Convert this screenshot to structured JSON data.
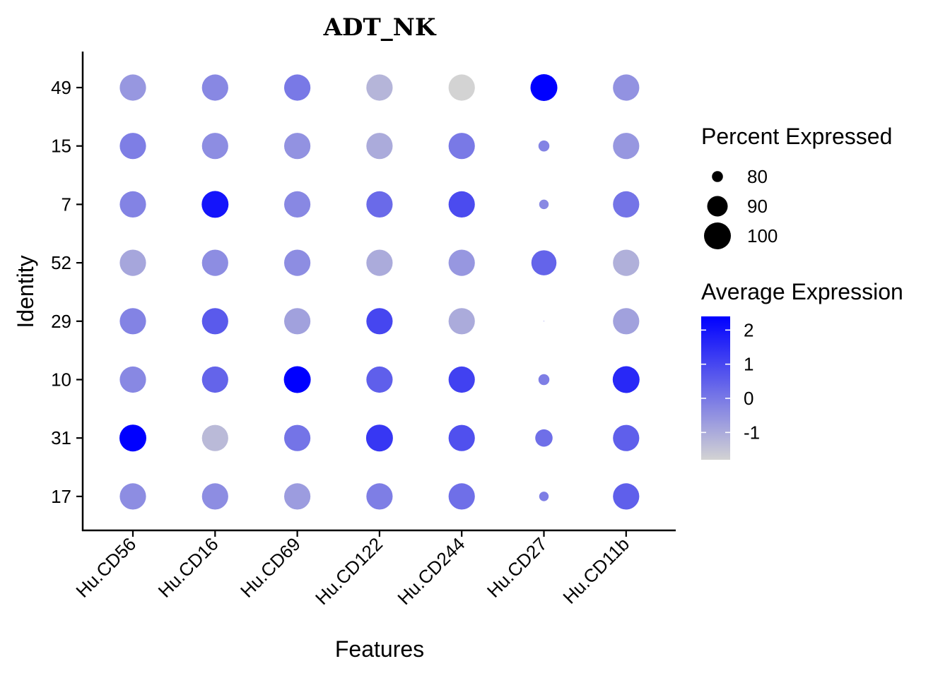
{
  "chart_data": {
    "type": "dotplot",
    "title": "ADT_NK",
    "xlabel": "Features",
    "ylabel": "Identity",
    "features": [
      "Hu.CD56",
      "Hu.CD16",
      "Hu.CD69",
      "Hu.CD122",
      "Hu.CD244",
      "Hu.CD27",
      "Hu.CD11b"
    ],
    "identities": [
      "49",
      "15",
      "7",
      "52",
      "29",
      "10",
      "31",
      "17"
    ],
    "color_low": "#d3d3d3",
    "color_high": "#0000ff",
    "color_range": [
      -1.8,
      2.4
    ],
    "size_range": [
      76,
      100
    ],
    "size_legend": {
      "title": "Percent Expressed",
      "breaks": [
        80,
        90,
        100
      ]
    },
    "color_legend": {
      "title": "Average Expression",
      "breaks": [
        2,
        1,
        0,
        -1
      ],
      "labels": [
        "2",
        "1",
        "0",
        "-1"
      ]
    },
    "legend_position": "right",
    "grid": false,
    "points": [
      {
        "identity": "49",
        "feature": "Hu.CD56",
        "pct": 99,
        "avg": -0.6
      },
      {
        "identity": "49",
        "feature": "Hu.CD16",
        "pct": 99,
        "avg": -0.3
      },
      {
        "identity": "49",
        "feature": "Hu.CD69",
        "pct": 99,
        "avg": 0.0
      },
      {
        "identity": "49",
        "feature": "Hu.CD122",
        "pct": 99,
        "avg": -1.2
      },
      {
        "identity": "49",
        "feature": "Hu.CD244",
        "pct": 99,
        "avg": -1.8
      },
      {
        "identity": "49",
        "feature": "Hu.CD27",
        "pct": 100,
        "avg": 2.4
      },
      {
        "identity": "49",
        "feature": "Hu.CD11b",
        "pct": 99,
        "avg": -0.5
      },
      {
        "identity": "15",
        "feature": "Hu.CD56",
        "pct": 99,
        "avg": -0.1
      },
      {
        "identity": "15",
        "feature": "Hu.CD16",
        "pct": 99,
        "avg": -0.4
      },
      {
        "identity": "15",
        "feature": "Hu.CD69",
        "pct": 99,
        "avg": -0.5
      },
      {
        "identity": "15",
        "feature": "Hu.CD122",
        "pct": 99,
        "avg": -1.0
      },
      {
        "identity": "15",
        "feature": "Hu.CD244",
        "pct": 99,
        "avg": 0.0
      },
      {
        "identity": "15",
        "feature": "Hu.CD27",
        "pct": 80,
        "avg": -0.2
      },
      {
        "identity": "15",
        "feature": "Hu.CD11b",
        "pct": 99,
        "avg": -0.6
      },
      {
        "identity": "7",
        "feature": "Hu.CD56",
        "pct": 99,
        "avg": -0.2
      },
      {
        "identity": "7",
        "feature": "Hu.CD16",
        "pct": 100,
        "avg": 2.0
      },
      {
        "identity": "7",
        "feature": "Hu.CD69",
        "pct": 99,
        "avg": -0.3
      },
      {
        "identity": "7",
        "feature": "Hu.CD122",
        "pct": 99,
        "avg": 0.3
      },
      {
        "identity": "7",
        "feature": "Hu.CD244",
        "pct": 99,
        "avg": 0.9
      },
      {
        "identity": "7",
        "feature": "Hu.CD27",
        "pct": 79,
        "avg": -0.3
      },
      {
        "identity": "7",
        "feature": "Hu.CD11b",
        "pct": 99,
        "avg": 0.1
      },
      {
        "identity": "52",
        "feature": "Hu.CD56",
        "pct": 99,
        "avg": -0.9
      },
      {
        "identity": "52",
        "feature": "Hu.CD16",
        "pct": 99,
        "avg": -0.4
      },
      {
        "identity": "52",
        "feature": "Hu.CD69",
        "pct": 99,
        "avg": -0.4
      },
      {
        "identity": "52",
        "feature": "Hu.CD122",
        "pct": 99,
        "avg": -1.0
      },
      {
        "identity": "52",
        "feature": "Hu.CD244",
        "pct": 99,
        "avg": -0.6
      },
      {
        "identity": "52",
        "feature": "Hu.CD27",
        "pct": 97,
        "avg": 0.4
      },
      {
        "identity": "52",
        "feature": "Hu.CD11b",
        "pct": 99,
        "avg": -1.1
      },
      {
        "identity": "29",
        "feature": "Hu.CD56",
        "pct": 99,
        "avg": -0.2
      },
      {
        "identity": "29",
        "feature": "Hu.CD16",
        "pct": 99,
        "avg": 0.6
      },
      {
        "identity": "29",
        "feature": "Hu.CD69",
        "pct": 99,
        "avg": -0.8
      },
      {
        "identity": "29",
        "feature": "Hu.CD122",
        "pct": 99,
        "avg": 1.0
      },
      {
        "identity": "29",
        "feature": "Hu.CD244",
        "pct": 99,
        "avg": -1.0
      },
      {
        "identity": "29",
        "feature": "Hu.CD27",
        "pct": 76,
        "avg": -0.2
      },
      {
        "identity": "29",
        "feature": "Hu.CD11b",
        "pct": 99,
        "avg": -0.8
      },
      {
        "identity": "10",
        "feature": "Hu.CD56",
        "pct": 99,
        "avg": -0.3
      },
      {
        "identity": "10",
        "feature": "Hu.CD16",
        "pct": 99,
        "avg": 0.4
      },
      {
        "identity": "10",
        "feature": "Hu.CD69",
        "pct": 100,
        "avg": 2.4
      },
      {
        "identity": "10",
        "feature": "Hu.CD122",
        "pct": 99,
        "avg": 0.5
      },
      {
        "identity": "10",
        "feature": "Hu.CD244",
        "pct": 99,
        "avg": 1.1
      },
      {
        "identity": "10",
        "feature": "Hu.CD27",
        "pct": 80,
        "avg": -0.1
      },
      {
        "identity": "10",
        "feature": "Hu.CD11b",
        "pct": 100,
        "avg": 1.6
      },
      {
        "identity": "31",
        "feature": "Hu.CD56",
        "pct": 100,
        "avg": 2.4
      },
      {
        "identity": "31",
        "feature": "Hu.CD16",
        "pct": 99,
        "avg": -1.3
      },
      {
        "identity": "31",
        "feature": "Hu.CD69",
        "pct": 99,
        "avg": 0.1
      },
      {
        "identity": "31",
        "feature": "Hu.CD122",
        "pct": 100,
        "avg": 1.3
      },
      {
        "identity": "31",
        "feature": "Hu.CD244",
        "pct": 99,
        "avg": 0.8
      },
      {
        "identity": "31",
        "feature": "Hu.CD27",
        "pct": 86,
        "avg": 0.2
      },
      {
        "identity": "31",
        "feature": "Hu.CD11b",
        "pct": 99,
        "avg": 0.5
      },
      {
        "identity": "17",
        "feature": "Hu.CD56",
        "pct": 99,
        "avg": -0.4
      },
      {
        "identity": "17",
        "feature": "Hu.CD16",
        "pct": 99,
        "avg": -0.4
      },
      {
        "identity": "17",
        "feature": "Hu.CD69",
        "pct": 99,
        "avg": -0.7
      },
      {
        "identity": "17",
        "feature": "Hu.CD122",
        "pct": 99,
        "avg": -0.1
      },
      {
        "identity": "17",
        "feature": "Hu.CD244",
        "pct": 99,
        "avg": 0.2
      },
      {
        "identity": "17",
        "feature": "Hu.CD27",
        "pct": 79,
        "avg": -0.1
      },
      {
        "identity": "17",
        "feature": "Hu.CD11b",
        "pct": 99,
        "avg": 0.5
      }
    ]
  }
}
